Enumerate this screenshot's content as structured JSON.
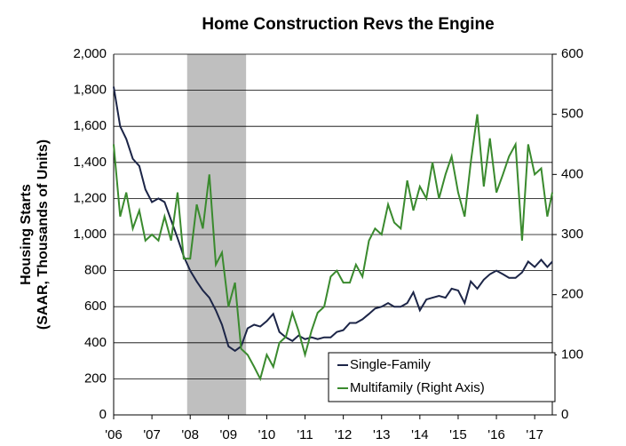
{
  "chart_data": {
    "type": "line",
    "title": "Home Construction Revs the Engine",
    "ylabel": [
      "Housing Starts",
      "(SAAR, Thousands of Units)"
    ],
    "x": [
      2006.0,
      2006.17,
      2006.33,
      2006.5,
      2006.67,
      2006.83,
      2007.0,
      2007.17,
      2007.33,
      2007.5,
      2007.67,
      2007.83,
      2008.0,
      2008.17,
      2008.33,
      2008.5,
      2008.67,
      2008.83,
      2009.0,
      2009.17,
      2009.33,
      2009.5,
      2009.67,
      2009.83,
      2010.0,
      2010.17,
      2010.33,
      2010.5,
      2010.67,
      2010.83,
      2011.0,
      2011.17,
      2011.33,
      2011.5,
      2011.67,
      2011.83,
      2012.0,
      2012.17,
      2012.33,
      2012.5,
      2012.67,
      2012.83,
      2013.0,
      2013.17,
      2013.33,
      2013.5,
      2013.67,
      2013.83,
      2014.0,
      2014.17,
      2014.33,
      2014.5,
      2014.67,
      2014.83,
      2015.0,
      2015.17,
      2015.33,
      2015.5,
      2015.67,
      2015.83,
      2016.0,
      2016.17,
      2016.33,
      2016.5,
      2016.67,
      2016.83,
      2017.0,
      2017.17,
      2017.33,
      2017.46
    ],
    "series": [
      {
        "name": "Single-Family",
        "color": "#1c2547",
        "values": [
          1820,
          1600,
          1530,
          1420,
          1380,
          1250,
          1180,
          1200,
          1180,
          1080,
          980,
          880,
          800,
          740,
          690,
          650,
          580,
          500,
          380,
          355,
          380,
          480,
          500,
          490,
          520,
          560,
          460,
          430,
          410,
          440,
          420,
          430,
          420,
          430,
          430,
          460,
          470,
          510,
          510,
          530,
          560,
          590,
          600,
          620,
          600,
          600,
          620,
          680,
          580,
          640,
          650,
          660,
          650,
          700,
          690,
          620,
          740,
          700,
          750,
          780,
          800,
          780,
          760,
          760,
          790,
          850,
          820,
          860,
          820,
          850
        ]
      },
      {
        "name": "Multifamily (Right Axis)",
        "color": "#3a8a2e",
        "axis": "y2",
        "values": [
          450,
          330,
          370,
          310,
          340,
          290,
          300,
          290,
          330,
          290,
          370,
          260,
          260,
          350,
          310,
          400,
          250,
          270,
          180,
          220,
          110,
          100,
          80,
          60,
          100,
          80,
          120,
          130,
          170,
          140,
          100,
          140,
          170,
          180,
          230,
          240,
          220,
          220,
          250,
          230,
          290,
          310,
          300,
          350,
          320,
          310,
          390,
          340,
          380,
          360,
          420,
          360,
          400,
          430,
          370,
          330,
          420,
          500,
          380,
          460,
          370,
          400,
          430,
          450,
          290,
          450,
          400,
          410,
          330,
          370
        ]
      }
    ],
    "recession": [
      2007.92,
      2009.46
    ],
    "xlim": [
      2006,
      2017.46
    ],
    "xticks": [
      {
        "value": 2006,
        "label": "'06"
      },
      {
        "value": 2007,
        "label": "'07"
      },
      {
        "value": 2008,
        "label": "'08"
      },
      {
        "value": 2009,
        "label": "'09"
      },
      {
        "value": 2010,
        "label": "'10"
      },
      {
        "value": 2011,
        "label": "'11"
      },
      {
        "value": 2012,
        "label": "'12"
      },
      {
        "value": 2013,
        "label": "'13"
      },
      {
        "value": 2014,
        "label": "'14"
      },
      {
        "value": 2015,
        "label": "'15"
      },
      {
        "value": 2016,
        "label": "'16"
      },
      {
        "value": 2017,
        "label": "'17"
      }
    ],
    "ylim": [
      0,
      2000
    ],
    "yticks": [
      0,
      200,
      400,
      600,
      800,
      {
        "value": 1000,
        "label": "1,000"
      },
      {
        "value": 1200,
        "label": "1,200"
      },
      {
        "value": 1400,
        "label": "1,400"
      },
      {
        "value": 1600,
        "label": "1,600"
      },
      {
        "value": 1800,
        "label": "1,800"
      },
      {
        "value": 2000,
        "label": "2,000"
      }
    ],
    "y2lim": [
      0,
      600
    ],
    "y2ticks": [
      0,
      100,
      200,
      300,
      400,
      500,
      600
    ],
    "grid": true,
    "legend": "lower right"
  }
}
